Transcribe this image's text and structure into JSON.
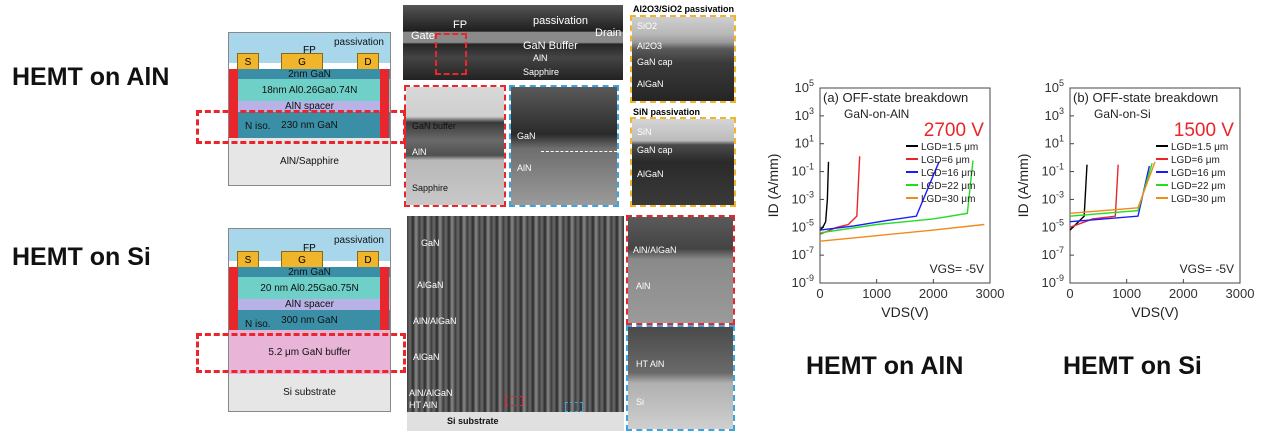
{
  "titles": {
    "aln_left": "HEMT on AlN",
    "si_left": "HEMT on Si",
    "aln_bottom": "HEMT on AlN",
    "si_bottom": "HEMT on Si"
  },
  "device_aln": {
    "passivation": "passivation",
    "s": "S",
    "g": "G",
    "fp": "FP",
    "d": "D",
    "layers": [
      "2nm GaN",
      "18nm Al0.26Ga0.74N",
      "AlN spacer",
      "230 nm GaN",
      "AlN/Sapphire"
    ],
    "niso": "N iso."
  },
  "device_si": {
    "passivation": "passivation",
    "s": "S",
    "g": "G",
    "fp": "FP",
    "d": "D",
    "layers": [
      "2nm GaN",
      "20 nm Al0.25Ga0.75N",
      "AlN spacer",
      "300 nm GaN",
      "5.2 μm GaN buffer",
      "Si substrate"
    ],
    "niso": "N iso."
  },
  "tem_top": {
    "labels": [
      "Gate",
      "FP",
      "passivation",
      "Drain",
      "GaN Buffer",
      "AlN",
      "Sapphire"
    ],
    "zoom_left": [
      "GaN buffer",
      "AlN",
      "Sapphire"
    ],
    "zoom_mid": [
      "GaN",
      "AlN"
    ],
    "right_title1": "Al2O3/SiO2 passivation",
    "right1": [
      "SiO2",
      "Al2O3",
      "GaN cap",
      "AlGaN"
    ],
    "right_title2": "SiN passivation",
    "right2": [
      "SiN",
      "GaN cap",
      "AlGaN"
    ]
  },
  "tem_bottom": {
    "labels": [
      "GaN",
      "AlGaN",
      "AlN/AlGaN",
      "AlGaN",
      "AlN/AlGaN",
      "HT AlN",
      "Si substrate"
    ],
    "zoom_top": [
      "AlN/AlGaN",
      "AlN"
    ],
    "zoom_bot": [
      "HT AlN",
      "Si"
    ]
  },
  "chart_data": [
    {
      "type": "line",
      "title": "(a) OFF-state breakdown",
      "subtitle": "GaN-on-AlN",
      "annotation": "2700 V",
      "condition": "VGS= -5V",
      "xlabel": "VDS(V)",
      "ylabel": "ID (A/mm)",
      "xlim": [
        0,
        3000
      ],
      "ylim_log10": [
        -9,
        5
      ],
      "xticks": [
        "0",
        "1000",
        "2000",
        "3000"
      ],
      "yticks": [
        "10-9",
        "10-7",
        "10-5",
        "10-3",
        "10-1",
        "101",
        "103",
        "105"
      ],
      "legend": [
        "LGD=1.5 μm",
        "LGD=6 μm",
        "LGD=16 μm",
        "LGD=22 μm",
        "LGD=30 μm"
      ],
      "colors": [
        "#000000",
        "#e8262b",
        "#1a1aff",
        "#22dd22",
        "#f08a1c"
      ],
      "series": [
        {
          "name": "LGD=1.5 μm",
          "x": [
            0,
            50,
            100,
            130,
            150
          ],
          "y": [
            -5.2,
            -5.0,
            -4.6,
            -3.0,
            -0.3
          ]
        },
        {
          "name": "LGD=6 μm",
          "x": [
            0,
            300,
            500,
            650,
            700
          ],
          "y": [
            -5.5,
            -5.0,
            -4.8,
            -4.2,
            0.1
          ]
        },
        {
          "name": "LGD=16 μm",
          "x": [
            0,
            600,
            1200,
            1700,
            2100
          ],
          "y": [
            -5.2,
            -4.9,
            -4.5,
            -4.2,
            -0.3
          ]
        },
        {
          "name": "LGD=22 μm",
          "x": [
            0,
            1000,
            2000,
            2600,
            2700
          ],
          "y": [
            -5.4,
            -4.8,
            -4.4,
            -4.0,
            -0.2
          ]
        },
        {
          "name": "LGD=30 μm",
          "x": [
            0,
            1000,
            2000,
            2900
          ],
          "y": [
            -6.0,
            -5.6,
            -5.2,
            -4.8
          ]
        }
      ]
    },
    {
      "type": "line",
      "title": "(b) OFF-state breakdown",
      "subtitle": "GaN-on-Si",
      "annotation": "1500 V",
      "condition": "VGS= -5V",
      "xlabel": "VDS(V)",
      "ylabel": "ID (A/mm)",
      "xlim": [
        0,
        3000
      ],
      "ylim_log10": [
        -9,
        5
      ],
      "xticks": [
        "0",
        "1000",
        "2000",
        "3000"
      ],
      "yticks": [
        "10-9",
        "10-7",
        "10-5",
        "10-3",
        "10-1",
        "101",
        "103",
        "105"
      ],
      "legend": [
        "LGD=1.5 μm",
        "LGD=6 μm",
        "LGD=16 μm",
        "LGD=22 μm",
        "LGD=30 μm"
      ],
      "colors": [
        "#000000",
        "#e8262b",
        "#1a1aff",
        "#22dd22",
        "#f08a1c"
      ],
      "series": [
        {
          "name": "LGD=1.5 μm",
          "x": [
            0,
            100,
            250,
            300
          ],
          "y": [
            -5.2,
            -4.8,
            -4.2,
            -0.5
          ]
        },
        {
          "name": "LGD=6 μm",
          "x": [
            0,
            400,
            800,
            850
          ],
          "y": [
            -5.0,
            -4.4,
            -4.2,
            -0.5
          ]
        },
        {
          "name": "LGD=16 μm",
          "x": [
            0,
            600,
            1200,
            1400
          ],
          "y": [
            -4.6,
            -4.4,
            -4.2,
            -0.6
          ]
        },
        {
          "name": "LGD=22 μm",
          "x": [
            0,
            600,
            1200,
            1450
          ],
          "y": [
            -4.2,
            -4.0,
            -3.8,
            -0.4
          ]
        },
        {
          "name": "LGD=30 μm",
          "x": [
            0,
            600,
            1200,
            1500
          ],
          "y": [
            -4.0,
            -3.8,
            -3.6,
            -0.3
          ]
        }
      ]
    }
  ]
}
